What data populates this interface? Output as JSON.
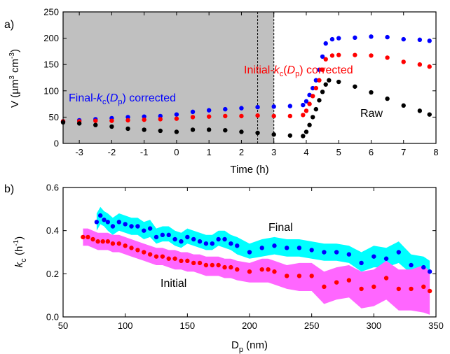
{
  "chart_data": [
    {
      "panel": "a)",
      "type": "scatter",
      "xlabel": "Time (h)",
      "ylabel_parts": [
        "V (µm",
        "3",
        " cm",
        "-3",
        ")"
      ],
      "xlim": [
        -3.5,
        8
      ],
      "ylim": [
        0,
        250
      ],
      "xticks": [
        -3,
        -2,
        -1,
        0,
        1,
        2,
        3,
        4,
        5,
        6,
        7,
        8
      ],
      "yticks": [
        0,
        50,
        100,
        150,
        200,
        250
      ],
      "shaded_region": {
        "x": [
          -3.5,
          3
        ],
        "color": "#c0c0c0"
      },
      "vlines": [
        2.5,
        3.0
      ],
      "annotations": {
        "final": {
          "parts": [
            "Final-",
            "k",
            "c",
            "(",
            "D",
            "p",
            ") corrected"
          ],
          "color": "#0000ff"
        },
        "initial": {
          "parts": [
            "Initial-",
            "k",
            "c",
            "(",
            "D",
            "p",
            ") corrected"
          ],
          "color": "#ff0000"
        },
        "raw": {
          "parts": [
            "Raw"
          ],
          "color": "#000000"
        }
      },
      "series": [
        {
          "id": "final",
          "color": "#0000ff",
          "points": [
            [
              -3.5,
              42
            ],
            [
              -3,
              44
            ],
            [
              -2.5,
              46
            ],
            [
              -2,
              48
            ],
            [
              -1.5,
              50
            ],
            [
              -1,
              51
            ],
            [
              -0.5,
              52
            ],
            [
              0,
              55
            ],
            [
              0.5,
              60
            ],
            [
              1,
              63
            ],
            [
              1.5,
              65
            ],
            [
              2,
              67
            ],
            [
              2.5,
              69
            ],
            [
              3,
              70
            ],
            [
              3.5,
              71
            ],
            [
              3.9,
              73
            ],
            [
              4.0,
              80
            ],
            [
              4.1,
              92
            ],
            [
              4.2,
              105
            ],
            [
              4.3,
              120
            ],
            [
              4.4,
              140
            ],
            [
              4.5,
              165
            ],
            [
              4.6,
              190
            ],
            [
              4.8,
              198
            ],
            [
              5,
              200
            ],
            [
              5.5,
              201
            ],
            [
              6,
              203
            ],
            [
              6.5,
              202
            ],
            [
              7,
              198
            ],
            [
              7.5,
              197
            ],
            [
              7.8,
              195
            ]
          ]
        },
        {
          "id": "initial",
          "color": "#ff0000",
          "points": [
            [
              -3.5,
              42
            ],
            [
              -3,
              42
            ],
            [
              -2.5,
              43
            ],
            [
              -2,
              43
            ],
            [
              -1.5,
              44
            ],
            [
              -1,
              45
            ],
            [
              -0.5,
              46
            ],
            [
              0,
              47
            ],
            [
              0.5,
              50
            ],
            [
              1,
              51
            ],
            [
              1.5,
              52
            ],
            [
              2,
              52
            ],
            [
              2.5,
              53
            ],
            [
              3,
              52
            ],
            [
              3.5,
              52
            ],
            [
              3.9,
              54
            ],
            [
              4.0,
              62
            ],
            [
              4.1,
              75
            ],
            [
              4.2,
              90
            ],
            [
              4.3,
              105
            ],
            [
              4.4,
              120
            ],
            [
              4.5,
              140
            ],
            [
              4.6,
              160
            ],
            [
              4.8,
              167
            ],
            [
              5,
              168
            ],
            [
              5.5,
              168
            ],
            [
              6,
              167
            ],
            [
              6.5,
              163
            ],
            [
              7,
              155
            ],
            [
              7.5,
              150
            ],
            [
              7.8,
              146
            ]
          ]
        },
        {
          "id": "raw",
          "color": "#000000",
          "points": [
            [
              -3.5,
              40
            ],
            [
              -3,
              38
            ],
            [
              -2.5,
              35
            ],
            [
              -2,
              32
            ],
            [
              -1.5,
              28
            ],
            [
              -1,
              26
            ],
            [
              -0.5,
              24
            ],
            [
              0,
              22
            ],
            [
              0.5,
              26
            ],
            [
              1,
              26
            ],
            [
              1.5,
              25
            ],
            [
              2,
              22
            ],
            [
              2.5,
              20
            ],
            [
              3,
              17
            ],
            [
              3.5,
              15
            ],
            [
              3.9,
              14
            ],
            [
              4.0,
              22
            ],
            [
              4.1,
              35
            ],
            [
              4.2,
              50
            ],
            [
              4.3,
              65
            ],
            [
              4.4,
              82
            ],
            [
              4.5,
              98
            ],
            [
              4.6,
              112
            ],
            [
              4.7,
              120
            ],
            [
              5,
              117
            ],
            [
              5.5,
              108
            ],
            [
              6,
              97
            ],
            [
              6.5,
              85
            ],
            [
              7,
              72
            ],
            [
              7.5,
              62
            ],
            [
              7.8,
              55
            ]
          ]
        }
      ]
    },
    {
      "panel": "b)",
      "type": "scatter",
      "xlabel_parts": [
        "D",
        "p",
        " (nm)"
      ],
      "ylabel_parts": [
        "k",
        "c",
        " (h",
        "-1",
        ")"
      ],
      "xlim": [
        50,
        350
      ],
      "ylim": [
        0,
        0.6
      ],
      "xticks": [
        50,
        100,
        150,
        200,
        250,
        300,
        350
      ],
      "yticks": [
        0.0,
        0.2,
        0.4,
        0.6
      ],
      "ytick_labels": [
        "0.0",
        "0.2",
        "0.4",
        "0.6"
      ],
      "annotations": {
        "final": {
          "text": "Final",
          "color": "#0000ff"
        },
        "initial": {
          "text": "Initial",
          "color": "#ff0000"
        }
      },
      "series": [
        {
          "id": "final",
          "color": "#0000ff",
          "band_color": "#00ffff",
          "x": [
            77,
            80,
            83,
            86,
            90,
            95,
            100,
            105,
            110,
            115,
            120,
            125,
            130,
            135,
            140,
            145,
            150,
            155,
            160,
            165,
            170,
            175,
            180,
            185,
            190,
            200,
            210,
            220,
            230,
            240,
            250,
            260,
            270,
            280,
            290,
            300,
            310,
            320,
            330,
            340,
            345
          ],
          "y": [
            0.44,
            0.47,
            0.45,
            0.44,
            0.42,
            0.44,
            0.43,
            0.42,
            0.42,
            0.4,
            0.41,
            0.37,
            0.38,
            0.38,
            0.36,
            0.35,
            0.37,
            0.36,
            0.35,
            0.34,
            0.34,
            0.36,
            0.36,
            0.34,
            0.33,
            0.3,
            0.32,
            0.33,
            0.32,
            0.32,
            0.31,
            0.3,
            0.3,
            0.29,
            0.25,
            0.28,
            0.27,
            0.3,
            0.24,
            0.23,
            0.21
          ],
          "band_lower": [
            0.4,
            0.43,
            0.42,
            0.4,
            0.38,
            0.4,
            0.39,
            0.38,
            0.38,
            0.36,
            0.37,
            0.34,
            0.35,
            0.35,
            0.33,
            0.32,
            0.34,
            0.33,
            0.32,
            0.31,
            0.31,
            0.33,
            0.32,
            0.31,
            0.29,
            0.27,
            0.28,
            0.29,
            0.28,
            0.28,
            0.27,
            0.26,
            0.26,
            0.25,
            0.21,
            0.23,
            0.23,
            0.25,
            0.2,
            0.19,
            0.17
          ],
          "band_upper": [
            0.48,
            0.51,
            0.49,
            0.48,
            0.46,
            0.48,
            0.47,
            0.46,
            0.46,
            0.44,
            0.45,
            0.41,
            0.42,
            0.42,
            0.4,
            0.39,
            0.41,
            0.4,
            0.39,
            0.38,
            0.38,
            0.4,
            0.4,
            0.38,
            0.37,
            0.34,
            0.36,
            0.37,
            0.36,
            0.36,
            0.35,
            0.34,
            0.34,
            0.33,
            0.3,
            0.33,
            0.32,
            0.35,
            0.29,
            0.28,
            0.26
          ]
        },
        {
          "id": "initial",
          "color": "#ff0000",
          "band_color": "#ff66ff",
          "x": [
            66,
            70,
            74,
            78,
            82,
            86,
            90,
            95,
            100,
            105,
            110,
            115,
            120,
            125,
            130,
            135,
            140,
            145,
            150,
            155,
            160,
            165,
            170,
            175,
            180,
            185,
            190,
            200,
            210,
            215,
            220,
            230,
            240,
            250,
            260,
            270,
            280,
            290,
            300,
            310,
            320,
            330,
            340,
            345
          ],
          "y": [
            0.37,
            0.37,
            0.36,
            0.35,
            0.35,
            0.35,
            0.34,
            0.34,
            0.33,
            0.32,
            0.31,
            0.3,
            0.29,
            0.28,
            0.28,
            0.27,
            0.27,
            0.26,
            0.26,
            0.25,
            0.25,
            0.24,
            0.24,
            0.24,
            0.23,
            0.23,
            0.22,
            0.21,
            0.22,
            0.22,
            0.21,
            0.19,
            0.19,
            0.19,
            0.14,
            0.16,
            0.17,
            0.13,
            0.14,
            0.18,
            0.13,
            0.13,
            0.14,
            0.12
          ],
          "band_lower": [
            0.33,
            0.33,
            0.32,
            0.31,
            0.31,
            0.31,
            0.3,
            0.3,
            0.29,
            0.28,
            0.27,
            0.26,
            0.25,
            0.24,
            0.24,
            0.23,
            0.22,
            0.22,
            0.21,
            0.21,
            0.2,
            0.19,
            0.19,
            0.19,
            0.18,
            0.18,
            0.17,
            0.16,
            0.16,
            0.16,
            0.15,
            0.13,
            0.12,
            0.12,
            0.06,
            0.08,
            0.09,
            0.04,
            0.05,
            0.08,
            0.03,
            0.03,
            0.02,
            0.01
          ],
          "band_upper": [
            0.41,
            0.41,
            0.4,
            0.39,
            0.39,
            0.39,
            0.38,
            0.38,
            0.37,
            0.36,
            0.35,
            0.34,
            0.33,
            0.32,
            0.32,
            0.31,
            0.31,
            0.3,
            0.3,
            0.29,
            0.29,
            0.28,
            0.28,
            0.28,
            0.27,
            0.27,
            0.26,
            0.25,
            0.27,
            0.27,
            0.26,
            0.24,
            0.25,
            0.25,
            0.21,
            0.23,
            0.24,
            0.21,
            0.22,
            0.26,
            0.22,
            0.22,
            0.24,
            0.21
          ]
        }
      ]
    }
  ]
}
